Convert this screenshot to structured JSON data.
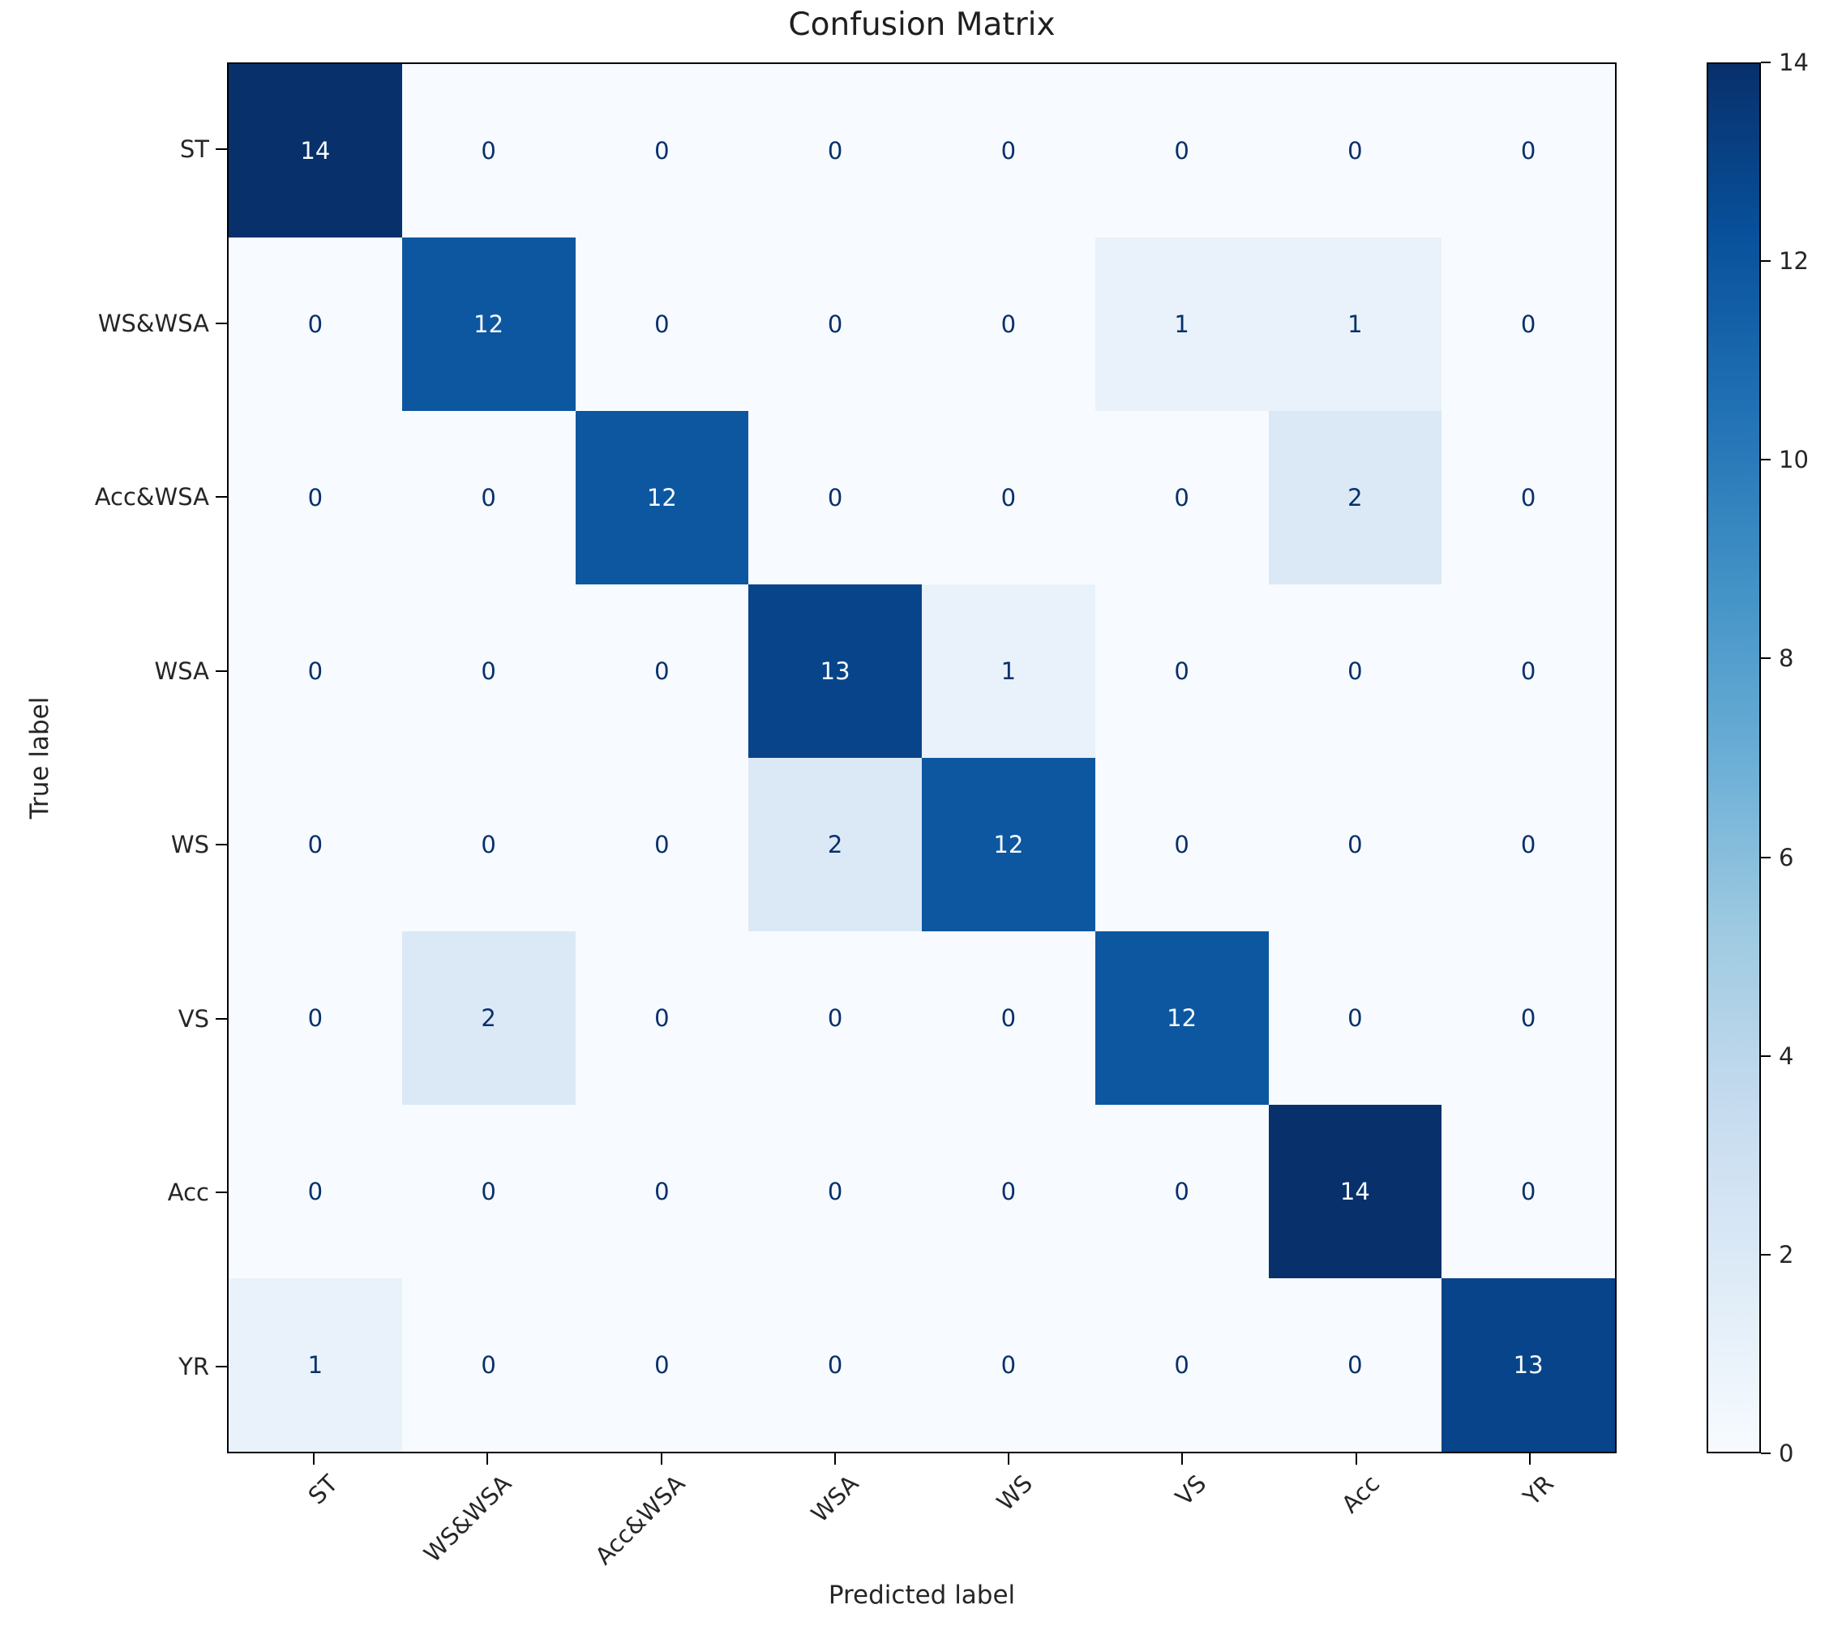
{
  "chart_data": {
    "type": "heatmap",
    "title": "Confusion Matrix",
    "xlabel": "Predicted label",
    "ylabel": "True label",
    "x_categories": [
      "ST",
      "WS&WSA",
      "Acc&WSA",
      "WSA",
      "WS",
      "VS",
      "Acc",
      "YR"
    ],
    "y_categories": [
      "ST",
      "WS&WSA",
      "Acc&WSA",
      "WSA",
      "WS",
      "VS",
      "Acc",
      "YR"
    ],
    "matrix": [
      [
        14,
        0,
        0,
        0,
        0,
        0,
        0,
        0
      ],
      [
        0,
        12,
        0,
        0,
        0,
        1,
        1,
        0
      ],
      [
        0,
        0,
        12,
        0,
        0,
        0,
        2,
        0
      ],
      [
        0,
        0,
        0,
        13,
        1,
        0,
        0,
        0
      ],
      [
        0,
        0,
        0,
        2,
        12,
        0,
        0,
        0
      ],
      [
        0,
        2,
        0,
        0,
        0,
        12,
        0,
        0
      ],
      [
        0,
        0,
        0,
        0,
        0,
        0,
        14,
        0
      ],
      [
        1,
        0,
        0,
        0,
        0,
        0,
        0,
        13
      ]
    ],
    "colormap": "Blues",
    "colorbar": {
      "min": 0,
      "max": 14,
      "ticks": [
        0,
        2,
        4,
        6,
        8,
        10,
        12,
        14
      ]
    },
    "grid": false,
    "legend": false,
    "x_tick_rotation_deg": 45
  },
  "colors": {
    "background": "#ffffff",
    "axis": "#000000",
    "label_text": "#262626",
    "cell_text_on_dark": "#f7fbff",
    "cell_text_on_light": "#08306b",
    "value_colors": {
      "0": "#f7fbff",
      "1": "#e9f2fa",
      "2": "#dbe9f6",
      "12": "#0d57a1",
      "13": "#084489",
      "14": "#08306b"
    },
    "colormap_stops": [
      "#f7fbff",
      "#deebf7",
      "#c6dbef",
      "#9ecae1",
      "#6baed6",
      "#4292c6",
      "#2171b5",
      "#08519c",
      "#08306b"
    ]
  }
}
